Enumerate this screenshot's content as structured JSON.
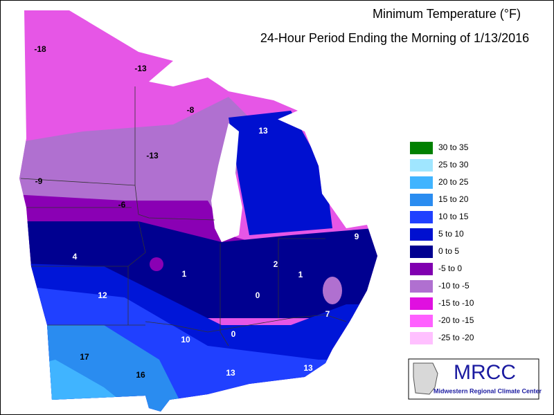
{
  "header": {
    "title": "Minimum Temperature (°F)",
    "subtitle": "24-Hour Period Ending the Morning of 1/13/2016"
  },
  "legend": [
    {
      "label": "30 to 35",
      "color": "#008000"
    },
    {
      "label": "25 to 30",
      "color": "#a0e6ff"
    },
    {
      "label": "20 to 25",
      "color": "#40b4ff"
    },
    {
      "label": "15 to 20",
      "color": "#2a8cf0"
    },
    {
      "label": "10 to 15",
      "color": "#2040ff"
    },
    {
      "label": "5 to 10",
      "color": "#0010d0"
    },
    {
      "label": "0 to 5",
      "color": "#000090"
    },
    {
      "label": "-5 to 0",
      "color": "#8000b0"
    },
    {
      "label": "-10 to -5",
      "color": "#b070d0"
    },
    {
      "label": "-15 to -10",
      "color": "#e010e0"
    },
    {
      "label": "-20 to -15",
      "color": "#ff60ff"
    },
    {
      "label": "-25 to -20",
      "color": "#ffc0ff"
    }
  ],
  "stations": [
    -18,
    -13,
    -8,
    -13,
    13,
    -9,
    -6,
    9,
    4,
    2,
    1,
    1,
    0,
    12,
    7,
    0,
    10,
    17,
    13,
    13,
    16
  ],
  "logo": {
    "title": "MRCC",
    "subtitle": "Midwestern Regional Climate Center"
  }
}
